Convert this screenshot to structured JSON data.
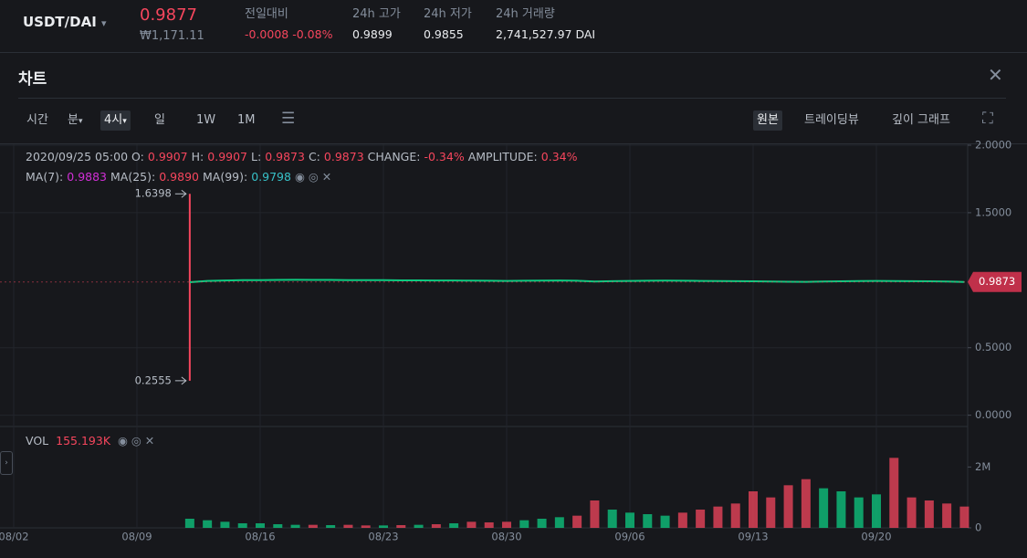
{
  "header": {
    "pair": "USDT/DAI",
    "price": "0.9877",
    "price_krw": "₩1,171.11",
    "stats": [
      {
        "label": "전일대비",
        "value": "-0.0008 -0.08%"
      },
      {
        "label": "24h 고가",
        "value": "0.9899"
      },
      {
        "label": "24h 저가",
        "value": "0.9855"
      },
      {
        "label": "24h 거래량",
        "value": "2,741,527.97 DAI"
      }
    ]
  },
  "panel": {
    "title": "차트",
    "toolbar_left": [
      "시간",
      "분",
      "4시",
      "일",
      "1W",
      "1M"
    ],
    "toolbar_right": [
      "원본",
      "트레이딩뷰",
      "깊이 그래프"
    ]
  },
  "legend": {
    "time": "2020/09/25 05:00",
    "items": [
      {
        "label": "O:",
        "value": "0.9907"
      },
      {
        "label": "H:",
        "value": "0.9907"
      },
      {
        "label": "L:",
        "value": "0.9873"
      },
      {
        "label": "C:",
        "value": "0.9873"
      },
      {
        "label": "CHANGE:",
        "value": "-0.34%"
      },
      {
        "label": "AMPLITUDE:",
        "value": "0.34%"
      }
    ],
    "ma": [
      {
        "label": "MA(7):",
        "value": "0.9883",
        "color": "#d12fd6"
      },
      {
        "label": "MA(25):",
        "value": "0.9890",
        "color": "#f6465d"
      },
      {
        "label": "MA(99):",
        "value": "0.9798",
        "color": "#37c0c7"
      }
    ]
  },
  "chart_data": [
    {
      "type": "line",
      "color": "#0ecb81",
      "x": [
        "08/12",
        "08/13",
        "08/14",
        "08/15",
        "08/16",
        "08/17",
        "08/18",
        "08/19",
        "08/20",
        "08/21",
        "08/22",
        "08/23",
        "08/24",
        "08/25",
        "08/26",
        "08/27",
        "08/28",
        "08/29",
        "08/30",
        "08/31",
        "09/01",
        "09/02",
        "09/03",
        "09/04",
        "09/05",
        "09/06",
        "09/07",
        "09/08",
        "09/09",
        "09/10",
        "09/11",
        "09/12",
        "09/13",
        "09/14",
        "09/15",
        "09/16",
        "09/17",
        "09/18",
        "09/19",
        "09/20",
        "09/21",
        "09/22",
        "09/23",
        "09/24",
        "09/25"
      ],
      "values": [
        0.985,
        0.995,
        0.998,
        1.0,
        1.001,
        1.002,
        1.003,
        1.002,
        1.002,
        1.001,
        1.0,
        1.0,
        0.999,
        0.999,
        0.998,
        0.998,
        0.997,
        0.996,
        0.995,
        0.996,
        0.997,
        0.998,
        0.996,
        0.99,
        0.993,
        0.995,
        0.996,
        0.997,
        0.996,
        0.995,
        0.994,
        0.993,
        0.992,
        0.99,
        0.989,
        0.988,
        0.99,
        0.992,
        0.994,
        0.995,
        0.994,
        0.993,
        0.992,
        0.99,
        0.9873
      ],
      "high": 1.6398,
      "low": 0.2555,
      "last_price": 0.9873,
      "ylim": [
        -0.07,
        2
      ],
      "yticks": [
        {
          "value": 0,
          "label": "0.0000"
        },
        {
          "value": 0.5,
          "label": "0.5000"
        },
        {
          "value": 1.5,
          "label": "1.5000"
        },
        {
          "value": 2,
          "label": "2.0000"
        }
      ],
      "xticks": [
        "08/02",
        "08/09",
        "08/16",
        "08/23",
        "08/30",
        "09/06",
        "09/13",
        "09/20"
      ],
      "grid": true
    },
    {
      "type": "bar",
      "title": "VOL",
      "legend_value": "155.193K",
      "up_color": "#0ecb81",
      "down_color": "#f6465d",
      "values": [
        300000,
        250000,
        200000,
        150000,
        150000,
        120000,
        100000,
        100000,
        90000,
        100000,
        80000,
        80000,
        90000,
        100000,
        120000,
        150000,
        200000,
        180000,
        200000,
        250000,
        300000,
        350000,
        400000,
        900000,
        600000,
        500000,
        450000,
        400000,
        500000,
        600000,
        700000,
        800000,
        1200000,
        1000000,
        1400000,
        1600000,
        1300000,
        1200000,
        1000000,
        1100000,
        2300000,
        1000000,
        900000,
        800000,
        700000
      ],
      "ylim": [
        0,
        3300000
      ],
      "yticks": [
        0,
        {
          "value": 2000000,
          "label": "2M"
        }
      ]
    }
  ]
}
